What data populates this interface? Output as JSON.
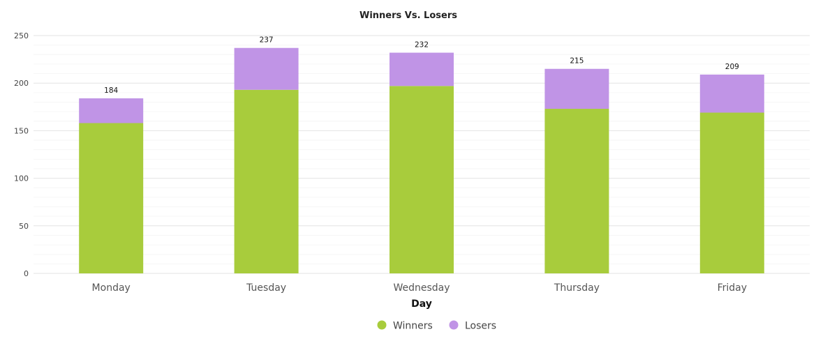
{
  "chart_data": {
    "type": "bar",
    "stacked": true,
    "title": "Winners Vs. Losers",
    "xlabel": "Day",
    "ylabel": "",
    "ylim": [
      0,
      250
    ],
    "yticks": [
      0,
      50,
      100,
      150,
      200,
      250
    ],
    "categories": [
      "Monday",
      "Tuesday",
      "Wednesday",
      "Thursday",
      "Friday"
    ],
    "series": [
      {
        "name": "Winners",
        "color": "#a8cc3c",
        "values": [
          158,
          193,
          197,
          173,
          169
        ]
      },
      {
        "name": "Losers",
        "color": "#c094e6",
        "values": [
          26,
          44,
          35,
          42,
          40
        ]
      }
    ],
    "totals": [
      184,
      237,
      232,
      215,
      209
    ],
    "legend_position": "bottom-center",
    "grid": true
  }
}
